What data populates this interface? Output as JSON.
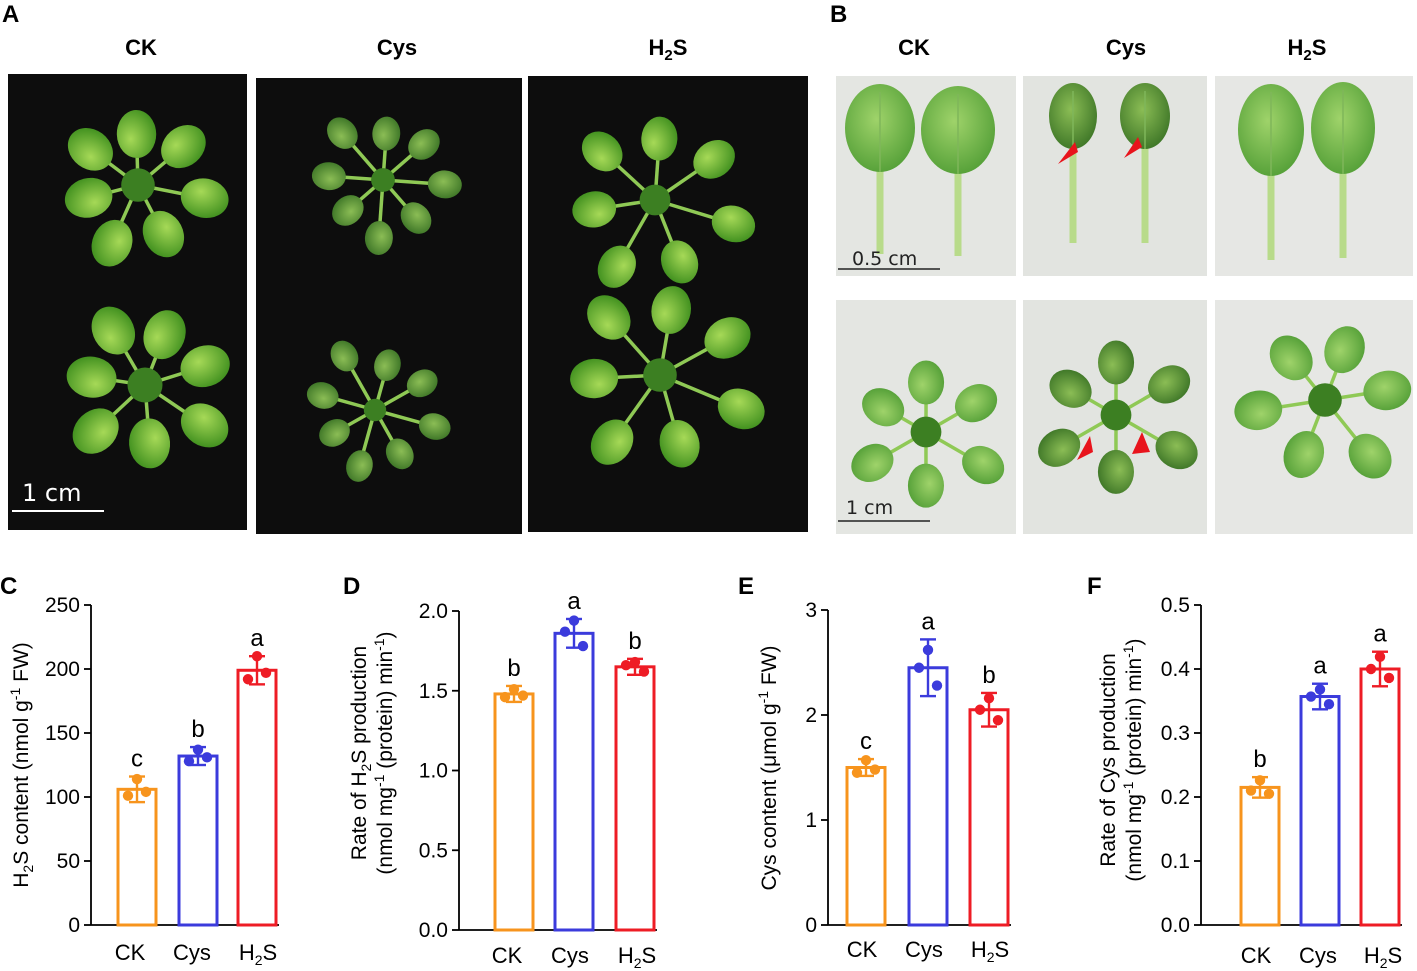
{
  "panels": {
    "a": {
      "label": "A",
      "columns": [
        "CK",
        "Cys",
        "H2S"
      ],
      "scale_bar": "1 cm"
    },
    "b": {
      "label": "B",
      "columns": [
        "CK",
        "Cys",
        "H2S"
      ],
      "scale_bar_top": "0.5 cm",
      "scale_bar_bottom": "1 cm"
    }
  },
  "colors": {
    "CK": "#f7941d",
    "Cys": "#3b3bdc",
    "H2S": "#ee1c25",
    "arrowhead": "#e8141c",
    "photo_bg_a": "#0d0d0d",
    "photo_bg_b": "#e4e6e2"
  },
  "chart_data": [
    {
      "panel": "C",
      "type": "bar",
      "categories": [
        "CK",
        "Cys",
        "H2S"
      ],
      "values": [
        106,
        132,
        199
      ],
      "errors": [
        10,
        7,
        11
      ],
      "points": [
        [
          114,
          101,
          104
        ],
        [
          137,
          128,
          131
        ],
        [
          210,
          192,
          197
        ]
      ],
      "letters": [
        "c",
        "b",
        "a"
      ],
      "ylabel": "H2S content (nmol g-1 FW)",
      "ylim": [
        0,
        250
      ],
      "yticks": [
        0,
        50,
        100,
        150,
        200,
        250
      ]
    },
    {
      "panel": "D",
      "type": "bar",
      "categories": [
        "CK",
        "Cys",
        "H2S"
      ],
      "values": [
        1.48,
        1.86,
        1.65
      ],
      "errors": [
        0.05,
        0.09,
        0.05
      ],
      "points": [
        [
          1.51,
          1.46,
          1.47
        ],
        [
          1.94,
          1.87,
          1.78
        ],
        [
          1.68,
          1.66,
          1.62
        ]
      ],
      "letters": [
        "b",
        "a",
        "b"
      ],
      "ylabel": "Rate of H2S production (nmol mg-1 (protein) min-1)",
      "ylim": [
        0,
        2.0
      ],
      "yticks": [
        0,
        0.5,
        1.0,
        1.5,
        2.0
      ]
    },
    {
      "panel": "E",
      "type": "bar",
      "categories": [
        "CK",
        "Cys",
        "H2S"
      ],
      "values": [
        1.5,
        2.45,
        2.05
      ],
      "errors": [
        0.08,
        0.27,
        0.16
      ],
      "points": [
        [
          1.57,
          1.45,
          1.48
        ],
        [
          2.62,
          2.45,
          2.28
        ],
        [
          2.16,
          2.05,
          1.95
        ]
      ],
      "letters": [
        "c",
        "a",
        "b"
      ],
      "ylabel": "Cys content (μmol g-1 FW)",
      "ylim": [
        0,
        3
      ],
      "yticks": [
        0,
        1,
        2,
        3
      ]
    },
    {
      "panel": "F",
      "type": "bar",
      "categories": [
        "CK",
        "Cys",
        "H2S"
      ],
      "values": [
        0.215,
        0.357,
        0.4
      ],
      "errors": [
        0.016,
        0.02,
        0.027
      ],
      "points": [
        [
          0.226,
          0.21,
          0.205
        ],
        [
          0.368,
          0.357,
          0.345
        ],
        [
          0.419,
          0.4,
          0.386
        ]
      ],
      "letters": [
        "b",
        "a",
        "a"
      ],
      "ylabel": "Rate of Cys production (nmol mg-1 (protein) min-1)",
      "ylim": [
        0,
        0.5
      ],
      "yticks": [
        0,
        0.1,
        0.2,
        0.3,
        0.4,
        0.5
      ]
    }
  ]
}
